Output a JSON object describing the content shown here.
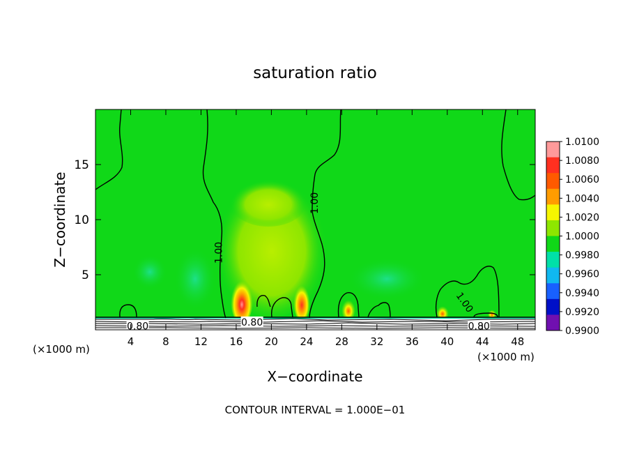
{
  "chart_data": {
    "type": "heatmap",
    "title": "saturation ratio",
    "xlabel": "X−coordinate",
    "ylabel": "Z−coordinate",
    "x_unit_left": "(×1000 m)",
    "x_unit_right": "(×1000 m)",
    "footer": "CONTOUR INTERVAL = 1.000E−01",
    "xlim": [
      0,
      50
    ],
    "ylim": [
      0,
      20
    ],
    "x_ticks": [
      4,
      8,
      12,
      16,
      20,
      24,
      28,
      32,
      36,
      40,
      44,
      48
    ],
    "y_ticks": [
      5,
      10,
      15
    ],
    "colorbar": {
      "levels": [
        "1.0100",
        "1.0080",
        "1.0060",
        "1.0040",
        "1.0020",
        "1.0000",
        "0.9980",
        "0.9960",
        "0.9940",
        "0.9920",
        "0.9900"
      ],
      "colors": [
        "#ff9a9a",
        "#ff3020",
        "#ff5a00",
        "#ff9c00",
        "#f6f600",
        "#8ee600",
        "#10d818",
        "#00e0a8",
        "#10b8f0",
        "#1860ff",
        "#0010c8",
        "#7010b0"
      ]
    },
    "contour_labels": [
      {
        "text": "1.00",
        "x": 14.0,
        "z": 7.0,
        "angle": -90
      },
      {
        "text": "1.00",
        "x": 24.9,
        "z": 11.5,
        "angle": -90
      },
      {
        "text": "1.00",
        "x": 42.0,
        "z": 2.5,
        "angle": 55
      },
      {
        "text": "0.80",
        "x": 4.8,
        "z": 0.35,
        "angle": 0
      },
      {
        "text": "0.80",
        "x": 17.8,
        "z": 0.7,
        "angle": 0
      },
      {
        "text": "0.80",
        "x": 43.6,
        "z": 0.35,
        "angle": 0
      }
    ],
    "background_value": 1.0,
    "hotspots": [
      {
        "x": 16.7,
        "z": 1.5,
        "peak": 1.01
      },
      {
        "x": 23.3,
        "z": 1.5,
        "peak": 1.008
      },
      {
        "x": 29.0,
        "z": 1.4,
        "peak": 1.006
      },
      {
        "x": 39.5,
        "z": 1.3,
        "peak": 1.004
      },
      {
        "x": 45.0,
        "z": 1.4,
        "peak": 1.004
      }
    ]
  }
}
